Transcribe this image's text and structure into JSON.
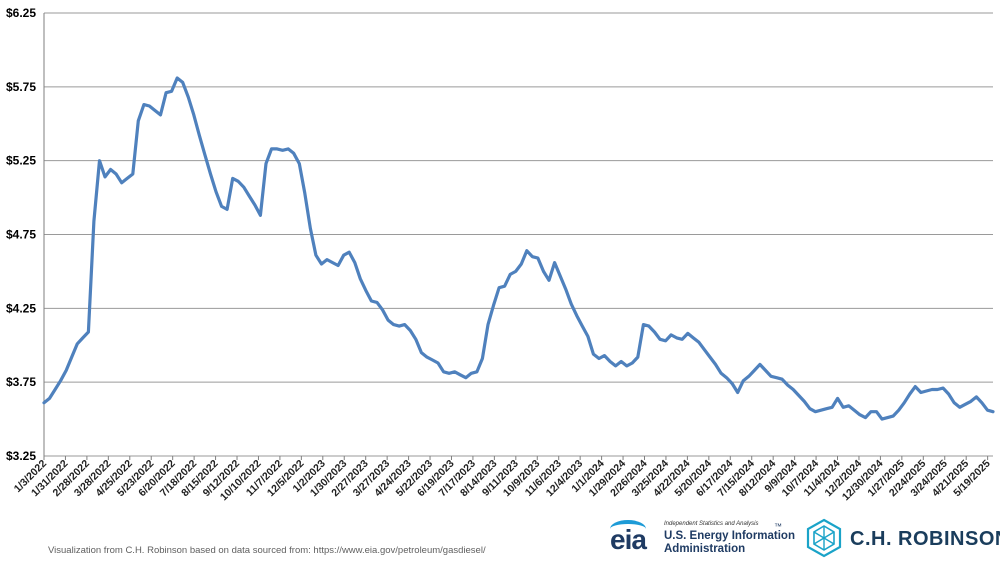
{
  "chart_data": {
    "type": "line",
    "title": "",
    "xlabel": "",
    "ylabel": "",
    "ylim": [
      3.25,
      6.25
    ],
    "y_ticks": [
      "$3.25",
      "$3.75",
      "$4.25",
      "$4.75",
      "$5.25",
      "$5.75",
      "$6.25"
    ],
    "y_tick_values": [
      3.25,
      3.75,
      4.25,
      4.75,
      5.25,
      5.75,
      6.25
    ],
    "grid": true,
    "legend": "none",
    "line_color": "#4f81bd",
    "x_tick_labels": [
      "1/3/2022",
      "1/31/2022",
      "2/28/2022",
      "3/28/2022",
      "4/25/2022",
      "5/23/2022",
      "6/20/2022",
      "7/18/2022",
      "8/15/2022",
      "9/12/2022",
      "10/10/2022",
      "11/7/2022",
      "12/5/2022",
      "1/2/2023",
      "1/30/2023",
      "2/27/2023",
      "3/27/2023",
      "4/24/2023",
      "5/22/2023",
      "6/19/2023",
      "7/17/2023",
      "8/14/2023",
      "9/11/2023",
      "10/9/2023",
      "11/6/2023",
      "12/4/2023",
      "1/1/2024",
      "1/29/2024",
      "2/26/2024",
      "3/25/2024",
      "4/22/2024",
      "5/20/2024",
      "6/17/2024",
      "7/15/2024",
      "8/12/2024",
      "9/9/2024",
      "10/7/2024",
      "11/4/2024",
      "12/2/2024",
      "12/30/2024",
      "1/27/2025",
      "2/24/2025",
      "3/24/2025",
      "4/21/2025",
      "5/19/2025"
    ],
    "x_start": "1/3/2022",
    "x_end": "5/26/2025",
    "series": [
      {
        "values": [
          3.61,
          3.64,
          3.7,
          3.76,
          3.83,
          3.92,
          4.01,
          4.05,
          4.09,
          4.84,
          5.25,
          5.14,
          5.19,
          5.16,
          5.1,
          5.13,
          5.16,
          5.52,
          5.63,
          5.62,
          5.59,
          5.56,
          5.71,
          5.72,
          5.81,
          5.78,
          5.68,
          5.56,
          5.42,
          5.29,
          5.16,
          5.04,
          4.94,
          4.92,
          5.13,
          5.11,
          5.07,
          5.01,
          4.95,
          4.88,
          5.23,
          5.33,
          5.33,
          5.32,
          5.33,
          5.3,
          5.23,
          5.03,
          4.79,
          4.61,
          4.55,
          4.58,
          4.56,
          4.54,
          4.61,
          4.63,
          4.56,
          4.45,
          4.37,
          4.3,
          4.29,
          4.24,
          4.17,
          4.14,
          4.13,
          4.14,
          4.1,
          4.04,
          3.95,
          3.92,
          3.9,
          3.88,
          3.82,
          3.81,
          3.82,
          3.8,
          3.78,
          3.81,
          3.82,
          3.91,
          4.14,
          4.27,
          4.39,
          4.4,
          4.48,
          4.5,
          4.55,
          4.64,
          4.6,
          4.59,
          4.5,
          4.44,
          4.56,
          4.47,
          4.38,
          4.28,
          4.2,
          4.13,
          4.06,
          3.94,
          3.91,
          3.93,
          3.89,
          3.86,
          3.89,
          3.86,
          3.88,
          3.92,
          4.14,
          4.13,
          4.09,
          4.04,
          4.03,
          4.07,
          4.05,
          4.04,
          4.08,
          4.05,
          4.02,
          3.97,
          3.92,
          3.87,
          3.81,
          3.78,
          3.74,
          3.68,
          3.76,
          3.79,
          3.83,
          3.87,
          3.83,
          3.79,
          3.78,
          3.77,
          3.73,
          3.7,
          3.66,
          3.62,
          3.57,
          3.55,
          3.56,
          3.57,
          3.58,
          3.64,
          3.58,
          3.59,
          3.56,
          3.53,
          3.51,
          3.55,
          3.55,
          3.5,
          3.51,
          3.52,
          3.56,
          3.61,
          3.67,
          3.72,
          3.68,
          3.69,
          3.7,
          3.7,
          3.71,
          3.67,
          3.61,
          3.58,
          3.6,
          3.62,
          3.65,
          3.61,
          3.56,
          3.55
        ]
      }
    ]
  },
  "footer": {
    "credit": "Visualization from C.H. Robinson based on data sourced from: https://www.eia.gov/petroleum/gasdiesel/"
  },
  "logos": {
    "eia_word": "eia",
    "eia_tagline": "Independent Statistics and Analysis",
    "eia_name_line1": "U.S. Energy Information",
    "eia_name_line2": "Administration",
    "eia_tm": "™",
    "chr_name": "C.H. ROBINSON",
    "eia_color": "#1f3b63",
    "chr_color": "#1a3d5c"
  }
}
